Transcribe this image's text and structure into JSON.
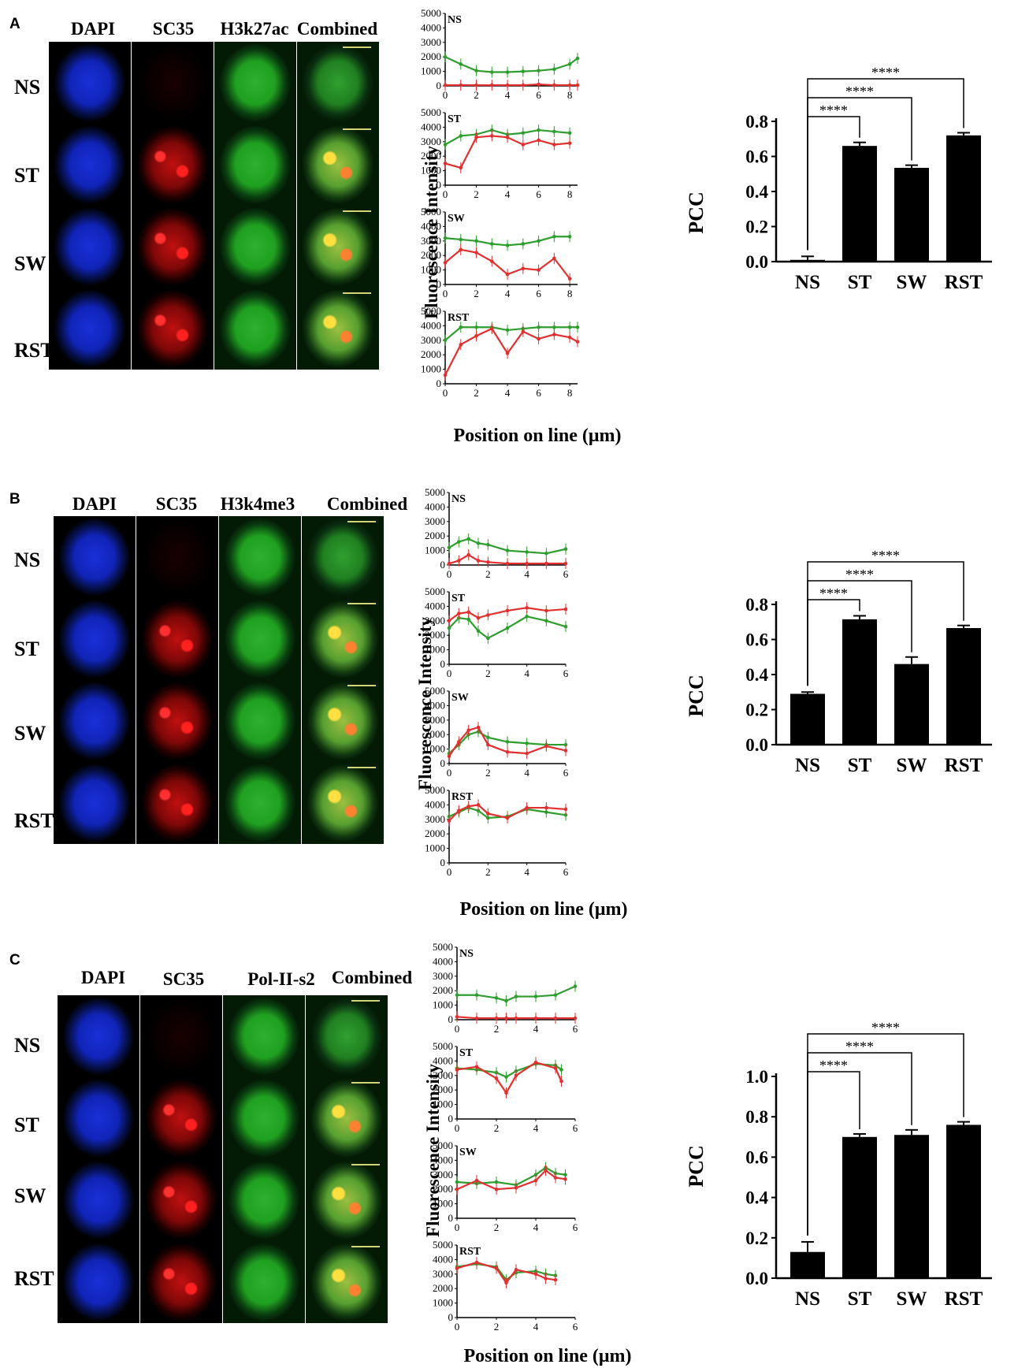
{
  "panels": [
    {
      "id": "A",
      "letter": "A",
      "columns": [
        "DAPI",
        "SC35",
        "H3k27ac",
        "Combined"
      ],
      "rows": [
        "NS",
        "ST",
        "SW",
        "RST"
      ],
      "profiles": {
        "ylabel": "Fluorescence Intensity",
        "xlabel": "Position on line (μm)",
        "yticks": [
          "0",
          "1000",
          "2000",
          "3000",
          "4000",
          "5000"
        ],
        "xticks": [
          "0",
          "2",
          "4",
          "6",
          "8"
        ],
        "xmax": 8.5
      },
      "pcc": {
        "ylabel": "PCC",
        "categories": [
          "NS",
          "ST",
          "SW",
          "RST"
        ],
        "values": [
          0.01,
          0.66,
          0.535,
          0.72
        ],
        "errors": [
          0.02,
          0.02,
          0.015,
          0.015
        ],
        "ylim": [
          0,
          0.8
        ],
        "yticks": [
          "0.0",
          "0.2",
          "0.4",
          "0.6",
          "0.8"
        ],
        "significance": "****"
      }
    },
    {
      "id": "B",
      "letter": "B",
      "columns": [
        "DAPI",
        "SC35",
        "H3k4me3",
        "Combined"
      ],
      "rows": [
        "NS",
        "ST",
        "SW",
        "RST"
      ],
      "profiles": {
        "ylabel": "Fluorescence Intensity",
        "xlabel": "Position on line (μm)",
        "yticks": [
          "0",
          "1000",
          "2000",
          "3000",
          "4000",
          "5000"
        ],
        "xticks": [
          "0",
          "2",
          "4",
          "6"
        ],
        "xmax": 6
      },
      "pcc": {
        "ylabel": "PCC",
        "categories": [
          "NS",
          "ST",
          "SW",
          "RST"
        ],
        "values": [
          0.29,
          0.715,
          0.46,
          0.665
        ],
        "errors": [
          0.01,
          0.02,
          0.04,
          0.015
        ],
        "ylim": [
          0,
          0.8
        ],
        "yticks": [
          "0.0",
          "0.2",
          "0.4",
          "0.6",
          "0.8"
        ],
        "significance": "****"
      }
    },
    {
      "id": "C",
      "letter": "C",
      "columns": [
        "DAPI",
        "SC35",
        "Pol-II-s2",
        "Combined"
      ],
      "rows": [
        "NS",
        "ST",
        "SW",
        "RST"
      ],
      "profiles": {
        "ylabel": "Fluorescence Intensity",
        "xlabel": "Position on line (μm)",
        "yticks": [
          "0",
          "1000",
          "2000",
          "3000",
          "4000",
          "5000"
        ],
        "xticks": [
          "0",
          "2",
          "4",
          "6"
        ],
        "xmax": 6
      },
      "pcc": {
        "ylabel": "PCC",
        "categories": [
          "NS",
          "ST",
          "SW",
          "RST"
        ],
        "values": [
          0.13,
          0.7,
          0.71,
          0.76
        ],
        "errors": [
          0.05,
          0.015,
          0.025,
          0.015
        ],
        "ylim": [
          0,
          1.0
        ],
        "yticks": [
          "0.0",
          "0.2",
          "0.4",
          "0.6",
          "0.8",
          "1.0"
        ],
        "significance": "****"
      }
    }
  ],
  "chart_data": [
    {
      "type": "bar",
      "title": "",
      "xlabel": "",
      "ylabel": "PCC",
      "categories": [
        "NS",
        "ST",
        "SW",
        "RST"
      ],
      "values": [
        0.01,
        0.66,
        0.535,
        0.72
      ],
      "errors": [
        0.02,
        0.02,
        0.015,
        0.015
      ],
      "ylim": [
        0,
        0.8
      ],
      "annotations": [
        "NS vs ST ****",
        "NS vs SW ****",
        "NS vs RST ****"
      ]
    },
    {
      "type": "bar",
      "title": "",
      "xlabel": "",
      "ylabel": "PCC",
      "categories": [
        "NS",
        "ST",
        "SW",
        "RST"
      ],
      "values": [
        0.29,
        0.715,
        0.46,
        0.665
      ],
      "errors": [
        0.01,
        0.02,
        0.04,
        0.015
      ],
      "ylim": [
        0,
        0.8
      ],
      "annotations": [
        "NS vs ST ****",
        "NS vs SW ****",
        "NS vs RST ****"
      ]
    },
    {
      "type": "bar",
      "title": "",
      "xlabel": "",
      "ylabel": "PCC",
      "categories": [
        "NS",
        "ST",
        "SW",
        "RST"
      ],
      "values": [
        0.13,
        0.7,
        0.71,
        0.76
      ],
      "errors": [
        0.05,
        0.015,
        0.025,
        0.015
      ],
      "ylim": [
        0,
        1.0
      ],
      "annotations": [
        "NS vs ST ****",
        "NS vs SW ****",
        "NS vs RST ****"
      ]
    },
    {
      "type": "line",
      "panel": "A",
      "xlabel": "Position on line (μm)",
      "ylabel": "Fluorescence Intensity",
      "xlim": [
        0,
        8.5
      ],
      "ylim": [
        0,
        5000
      ],
      "subplots": [
        {
          "label": "NS",
          "x": [
            0,
            1,
            2,
            3,
            4,
            5,
            6,
            7,
            8,
            8.5
          ],
          "series": [
            {
              "color": "#2e9e2e",
              "values": [
                2000,
                1500,
                1050,
                950,
                950,
                1000,
                1050,
                1150,
                1500,
                1900
              ]
            },
            {
              "color": "#e03030",
              "values": [
                50,
                50,
                50,
                50,
                50,
                50,
                100,
                50,
                50,
                50
              ]
            }
          ]
        },
        {
          "label": "ST",
          "x": [
            0,
            1,
            2,
            3,
            4,
            5,
            6,
            7,
            8
          ],
          "series": [
            {
              "color": "#2e9e2e",
              "values": [
                2800,
                3400,
                3500,
                3800,
                3500,
                3600,
                3800,
                3700,
                3600
              ]
            },
            {
              "color": "#e03030",
              "values": [
                1500,
                1200,
                3300,
                3400,
                3300,
                2800,
                3100,
                2800,
                2900
              ]
            }
          ]
        },
        {
          "label": "SW",
          "x": [
            0,
            1,
            2,
            3,
            4,
            5,
            6,
            7,
            8
          ],
          "series": [
            {
              "color": "#2e9e2e",
              "values": [
                3200,
                3100,
                3000,
                2800,
                2700,
                2800,
                3000,
                3300,
                3300
              ]
            },
            {
              "color": "#e03030",
              "values": [
                1500,
                2400,
                2200,
                1600,
                700,
                1100,
                1000,
                1800,
                400
              ]
            }
          ]
        },
        {
          "label": "RST",
          "x": [
            0,
            1,
            2,
            3,
            4,
            5,
            6,
            7,
            8,
            8.5
          ],
          "series": [
            {
              "color": "#2e9e2e",
              "values": [
                3000,
                3900,
                3900,
                3900,
                3700,
                3800,
                3900,
                3900,
                3900,
                3900
              ]
            },
            {
              "color": "#e03030",
              "values": [
                600,
                2700,
                3300,
                3800,
                2100,
                3600,
                3100,
                3400,
                3200,
                2900
              ]
            }
          ]
        }
      ]
    },
    {
      "type": "line",
      "panel": "B",
      "xlabel": "Position on line (μm)",
      "ylabel": "Fluorescence Intensity",
      "xlim": [
        0,
        6
      ],
      "ylim": [
        0,
        5000
      ],
      "subplots": [
        {
          "label": "NS",
          "x": [
            0,
            0.5,
            1,
            1.5,
            2,
            3,
            4,
            5,
            6
          ],
          "series": [
            {
              "color": "#2e9e2e",
              "values": [
                1200,
                1600,
                1800,
                1500,
                1400,
                1000,
                900,
                800,
                1100
              ]
            },
            {
              "color": "#e03030",
              "values": [
                100,
                300,
                700,
                300,
                200,
                100,
                100,
                100,
                100
              ]
            }
          ]
        },
        {
          "label": "ST",
          "x": [
            0,
            0.5,
            1,
            1.5,
            2,
            3,
            4,
            5,
            6
          ],
          "series": [
            {
              "color": "#2e9e2e",
              "values": [
                2500,
                3200,
                3100,
                2300,
                1800,
                2500,
                3300,
                3000,
                2600
              ]
            },
            {
              "color": "#e03030",
              "values": [
                3000,
                3500,
                3600,
                3200,
                3400,
                3700,
                3900,
                3700,
                3800
              ]
            }
          ]
        },
        {
          "label": "SW",
          "x": [
            0,
            0.5,
            1,
            1.5,
            2,
            3,
            4,
            5,
            6
          ],
          "series": [
            {
              "color": "#2e9e2e",
              "values": [
                700,
                1300,
                2000,
                2200,
                1800,
                1500,
                1400,
                1300,
                1300
              ]
            },
            {
              "color": "#e03030",
              "values": [
                500,
                1500,
                2300,
                2500,
                1300,
                800,
                700,
                1200,
                900
              ]
            }
          ]
        },
        {
          "label": "RST",
          "x": [
            0,
            0.5,
            1,
            1.5,
            2,
            3,
            4,
            5,
            6
          ],
          "series": [
            {
              "color": "#2e9e2e",
              "values": [
                3200,
                3500,
                3800,
                3600,
                3100,
                3200,
                3700,
                3500,
                3300
              ]
            },
            {
              "color": "#e03030",
              "values": [
                2900,
                3600,
                3900,
                4000,
                3400,
                3100,
                3800,
                3800,
                3700
              ]
            }
          ]
        }
      ]
    },
    {
      "type": "line",
      "panel": "C",
      "xlabel": "Position on line (μm)",
      "ylabel": "Fluorescence Intensity",
      "xlim": [
        0,
        6
      ],
      "ylim": [
        0,
        5000
      ],
      "subplots": [
        {
          "label": "NS",
          "x": [
            0,
            1,
            2,
            2.5,
            3,
            4,
            5,
            6
          ],
          "series": [
            {
              "color": "#2e9e2e",
              "values": [
                1700,
                1700,
                1500,
                1300,
                1600,
                1600,
                1700,
                2300
              ]
            },
            {
              "color": "#e03030",
              "values": [
                200,
                100,
                100,
                100,
                100,
                100,
                100,
                100
              ]
            }
          ]
        },
        {
          "label": "ST",
          "x": [
            0,
            1,
            2,
            2.5,
            3,
            4,
            5,
            5.3
          ],
          "series": [
            {
              "color": "#2e9e2e",
              "values": [
                3500,
                3400,
                3200,
                2900,
                3300,
                3800,
                3700,
                3400
              ]
            },
            {
              "color": "#e03030",
              "values": [
                3400,
                3600,
                2800,
                1800,
                3000,
                3900,
                3500,
                2600
              ]
            }
          ]
        },
        {
          "label": "SW",
          "x": [
            0,
            1,
            2,
            3,
            4,
            4.5,
            5,
            5.5
          ],
          "series": [
            {
              "color": "#2e9e2e",
              "values": [
                2500,
                2400,
                2500,
                2300,
                3000,
                3500,
                3100,
                3000
              ]
            },
            {
              "color": "#e03030",
              "values": [
                2000,
                2600,
                2000,
                2100,
                2600,
                3300,
                2800,
                2700
              ]
            }
          ]
        },
        {
          "label": "RST",
          "x": [
            0,
            1,
            2,
            2.5,
            3,
            4,
            4.5,
            5
          ],
          "series": [
            {
              "color": "#2e9e2e",
              "values": [
                3500,
                3700,
                3500,
                2600,
                3100,
                3200,
                3000,
                2900
              ]
            },
            {
              "color": "#e03030",
              "values": [
                3400,
                3800,
                3400,
                2400,
                3300,
                3000,
                2700,
                2600
              ]
            }
          ]
        }
      ]
    }
  ]
}
